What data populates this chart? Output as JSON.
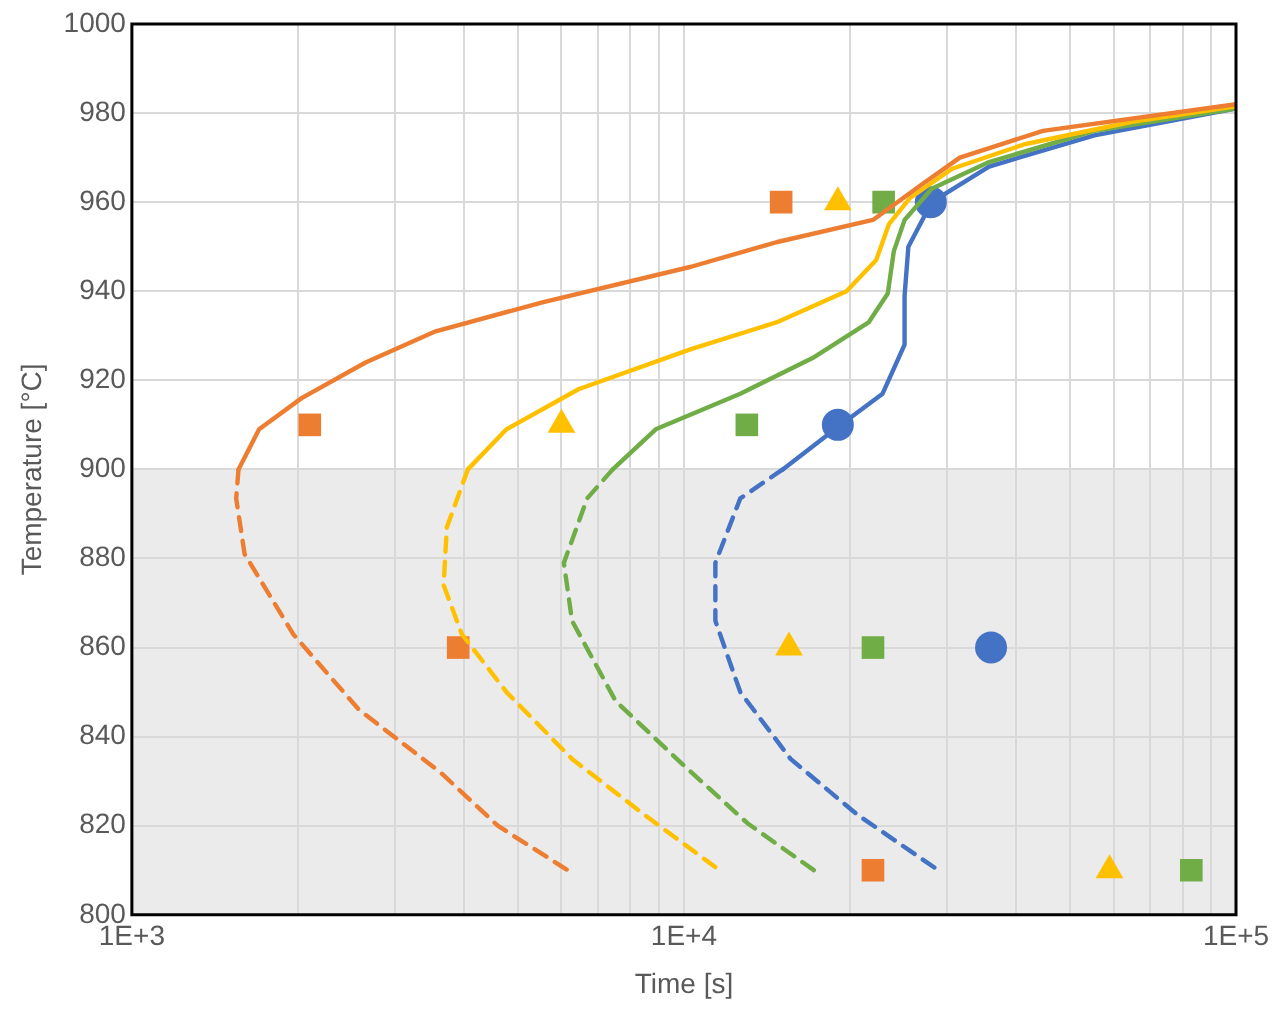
{
  "chart_data": {
    "type": "line",
    "xlabel": "Time [s]",
    "ylabel": "Temperature [°C]",
    "log": "x",
    "grid": true,
    "legend": false,
    "xlim": [
      1000,
      100000
    ],
    "xticks": [
      {
        "value": 1000,
        "label": "1E+3"
      },
      {
        "value": 2000,
        "label": null
      },
      {
        "value": 3000,
        "label": null
      },
      {
        "value": 4000,
        "label": null
      },
      {
        "value": 5000,
        "label": null
      },
      {
        "value": 6000,
        "label": null
      },
      {
        "value": 7000,
        "label": null
      },
      {
        "value": 8000,
        "label": null
      },
      {
        "value": 9000,
        "label": null
      },
      {
        "value": 10000,
        "label": "1E+4"
      },
      {
        "value": 20000,
        "label": null
      },
      {
        "value": 30000,
        "label": null
      },
      {
        "value": 40000,
        "label": null
      },
      {
        "value": 50000,
        "label": null
      },
      {
        "value": 60000,
        "label": null
      },
      {
        "value": 70000,
        "label": null
      },
      {
        "value": 80000,
        "label": null
      },
      {
        "value": 90000,
        "label": null
      },
      {
        "value": 100000,
        "label": "1E+5"
      }
    ],
    "ylim": [
      800,
      1000
    ],
    "yticks": [
      800,
      820,
      840,
      860,
      880,
      900,
      920,
      940,
      960,
      980,
      1000
    ],
    "bands": [
      {
        "axis": "y",
        "from": 800,
        "to": 900,
        "color": "#ebebeb"
      }
    ],
    "series": [
      {
        "type": "line",
        "color": "#ed7d31",
        "marker": "none",
        "line_style": "solid",
        "x": [
          1560,
          1700,
          2030,
          2650,
          3550,
          5540,
          10300,
          14700,
          22000,
          27000,
          31600,
          44700,
          100000
        ],
        "values": [
          900,
          909,
          916,
          924,
          931,
          937.5,
          945.5,
          951,
          956,
          964,
          970,
          976,
          982
        ]
      },
      {
        "type": "line",
        "color": "#ed7d31",
        "marker": "none",
        "line_style": "dashed",
        "x": [
          1560,
          1545,
          1600,
          1960,
          2580,
          3620,
          4600,
          6160
        ],
        "values": [
          900,
          893.5,
          881,
          863,
          846,
          832,
          820,
          810
        ]
      },
      {
        "type": "line",
        "color": "#ffc000",
        "marker": "none",
        "line_style": "solid",
        "x": [
          4060,
          4770,
          6440,
          10300,
          14700,
          19700,
          22300,
          23500,
          25700,
          30600,
          41400,
          64500,
          100000
        ],
        "values": [
          900,
          909,
          918,
          927,
          933,
          940,
          947,
          955,
          961,
          967.5,
          973,
          978,
          981.5
        ]
      },
      {
        "type": "line",
        "color": "#ffc000",
        "marker": "none",
        "line_style": "dashed",
        "x": [
          4060,
          3720,
          3670,
          3960,
          4770,
          6270,
          8470,
          11600
        ],
        "values": [
          900,
          887,
          874,
          863,
          850,
          835,
          822.5,
          810
        ]
      },
      {
        "type": "line",
        "color": "#70ad47",
        "marker": "none",
        "line_style": "solid",
        "x": [
          7430,
          8890,
          12650,
          17100,
          21600,
          23400,
          24000,
          25100,
          28100,
          35700,
          55400,
          100000
        ],
        "values": [
          900,
          909,
          917,
          925,
          933,
          939.5,
          949,
          956,
          963,
          969,
          976,
          981
        ]
      },
      {
        "type": "line",
        "color": "#70ad47",
        "marker": "none",
        "line_style": "dashed",
        "x": [
          7430,
          6680,
          6060,
          6270,
          7520,
          9900,
          13050,
          17200
        ],
        "values": [
          900,
          893.5,
          879,
          866,
          848,
          834,
          820.5,
          810
        ]
      },
      {
        "type": "line",
        "color": "#4472c4",
        "marker": "none",
        "line_style": "solid",
        "x": [
          15100,
          19000,
          22900,
          25100,
          25100,
          25500,
          28100,
          35700,
          55400,
          100000
        ],
        "values": [
          900,
          909.5,
          917,
          928,
          939,
          950,
          960,
          968,
          975,
          981
        ]
      },
      {
        "type": "line",
        "color": "#4472c4",
        "marker": "none",
        "line_style": "dashed",
        "x": [
          15100,
          12650,
          11400,
          11400,
          12650,
          15600,
          20600,
          28900
        ],
        "values": [
          900,
          893.5,
          879,
          866,
          850,
          835,
          822.5,
          810
        ]
      },
      {
        "type": "scatter",
        "color": "#ed7d31",
        "marker": "square",
        "x": [
          2100,
          15000,
          3900,
          22000
        ],
        "values": [
          910,
          960,
          860,
          810
        ]
      },
      {
        "type": "scatter",
        "color": "#ffc000",
        "marker": "triangle",
        "x": [
          6000,
          19000,
          15500,
          59000
        ],
        "values": [
          910,
          960,
          860,
          810
        ]
      },
      {
        "type": "scatter",
        "color": "#70ad47",
        "marker": "square",
        "x": [
          13000,
          23000,
          22000,
          83000
        ],
        "values": [
          910,
          960,
          860,
          810
        ]
      },
      {
        "type": "scatter",
        "color": "#4472c4",
        "marker": "circle",
        "x": [
          19000,
          28000,
          36000
        ],
        "values": [
          910,
          960,
          860
        ]
      }
    ]
  }
}
